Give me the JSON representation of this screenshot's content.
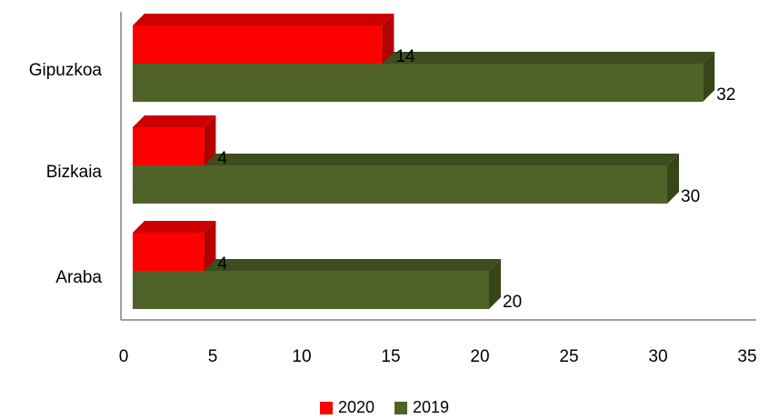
{
  "chart_data": {
    "type": "bar",
    "orientation": "horizontal",
    "three_d": true,
    "categories": [
      "Gipuzkoa",
      "Bizkaia",
      "Araba"
    ],
    "series": [
      {
        "name": "2020",
        "color": "#ff0000",
        "values": [
          14,
          4,
          4
        ]
      },
      {
        "name": "2019",
        "color": "#4f6228",
        "values": [
          32,
          30,
          20
        ]
      }
    ],
    "xlim": [
      0,
      35
    ],
    "xticks": [
      0,
      5,
      10,
      15,
      20,
      25,
      30,
      35
    ],
    "xlabel": "",
    "ylabel": "",
    "grid": false,
    "legend_position": "bottom",
    "data_labels": true
  }
}
